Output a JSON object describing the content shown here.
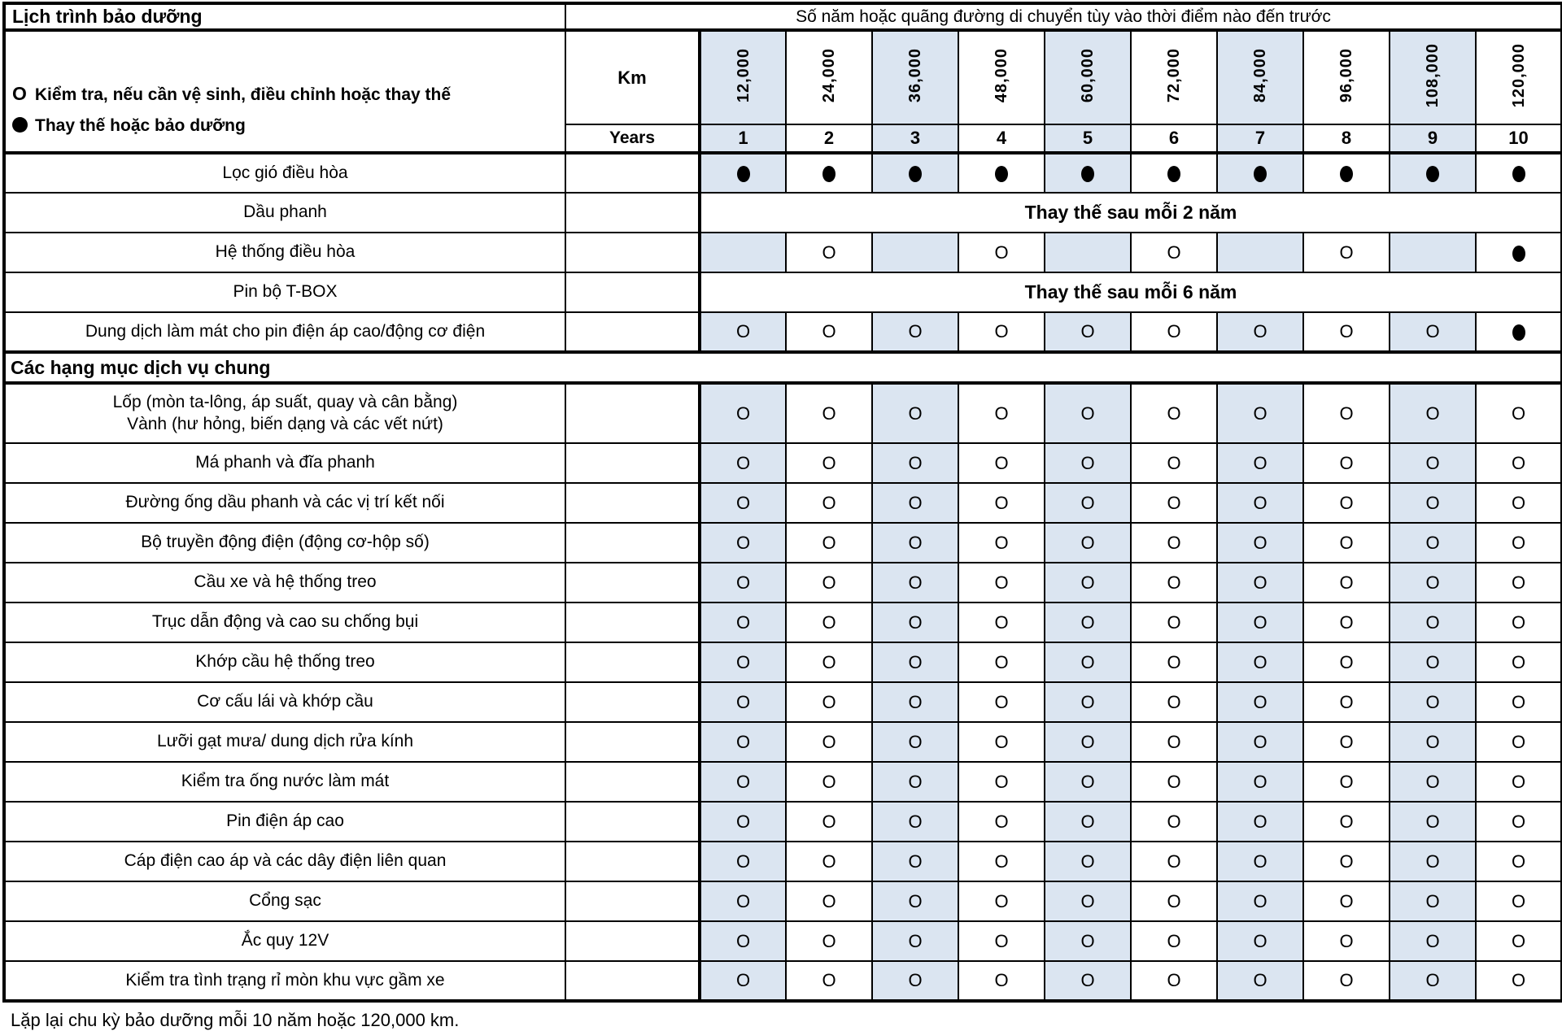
{
  "colors": {
    "alt_column_bg": "#dbe5f1",
    "border": "#000000",
    "background": "#ffffff"
  },
  "header": {
    "title": "Lịch trình bảo dưỡng",
    "subtitle": "Số năm hoặc quãng đường di chuyển tùy vào thời điểm nào đến trước",
    "km_label": "Km",
    "years_label": "Years",
    "km_values": [
      "12,000",
      "24,000",
      "36,000",
      "48,000",
      "60,000",
      "72,000",
      "84,000",
      "96,000",
      "108,000",
      "120,000"
    ],
    "year_values": [
      "1",
      "2",
      "3",
      "4",
      "5",
      "6",
      "7",
      "8",
      "9",
      "10"
    ]
  },
  "legend": {
    "o_symbol": "O",
    "o_text": "Kiểm tra, nếu cần vệ sinh, điều chỉnh hoặc thay thế",
    "dot_text": "Thay thế hoặc bảo dưỡng"
  },
  "sections": [
    {
      "header": null,
      "rows": [
        {
          "label": "Lọc gió điều hòa",
          "marks": [
            "dot",
            "dot",
            "dot",
            "dot",
            "dot",
            "dot",
            "dot",
            "dot",
            "dot",
            "dot"
          ]
        },
        {
          "label": "Dầu phanh",
          "merged_text": "Thay thế sau mỗi 2 năm"
        },
        {
          "label": "Hệ thống điều hòa",
          "marks": [
            "",
            "O",
            "",
            "O",
            "",
            "O",
            "",
            "O",
            "",
            "dot"
          ]
        },
        {
          "label": "Pin bộ T-BOX",
          "merged_text": "Thay thế sau mỗi 6 năm"
        },
        {
          "label": "Dung dịch làm mát cho pin điện áp cao/động cơ điện",
          "marks": [
            "O",
            "O",
            "O",
            "O",
            "O",
            "O",
            "O",
            "O",
            "O",
            "dot"
          ]
        }
      ]
    },
    {
      "header": "Các hạng mục dịch vụ chung",
      "rows": [
        {
          "label": "Lốp (mòn ta-lông, áp suất, quay và cân bằng)\nVành (hư hỏng, biến dạng và các vết nứt)",
          "tall": true,
          "marks": [
            "O",
            "O",
            "O",
            "O",
            "O",
            "O",
            "O",
            "O",
            "O",
            "O"
          ]
        },
        {
          "label": "Má phanh và đĩa phanh",
          "marks": [
            "O",
            "O",
            "O",
            "O",
            "O",
            "O",
            "O",
            "O",
            "O",
            "O"
          ]
        },
        {
          "label": "Đường ống dầu phanh và các vị trí kết nối",
          "marks": [
            "O",
            "O",
            "O",
            "O",
            "O",
            "O",
            "O",
            "O",
            "O",
            "O"
          ]
        },
        {
          "label": "Bộ truyền động điện (động cơ-hộp số)",
          "marks": [
            "O",
            "O",
            "O",
            "O",
            "O",
            "O",
            "O",
            "O",
            "O",
            "O"
          ]
        },
        {
          "label": "Cầu xe và hệ thống treo",
          "marks": [
            "O",
            "O",
            "O",
            "O",
            "O",
            "O",
            "O",
            "O",
            "O",
            "O"
          ]
        },
        {
          "label": "Trục dẫn động và cao su chống bụi",
          "marks": [
            "O",
            "O",
            "O",
            "O",
            "O",
            "O",
            "O",
            "O",
            "O",
            "O"
          ]
        },
        {
          "label": "Khớp cầu hệ thống treo",
          "marks": [
            "O",
            "O",
            "O",
            "O",
            "O",
            "O",
            "O",
            "O",
            "O",
            "O"
          ]
        },
        {
          "label": "Cơ cấu lái và khớp cầu",
          "marks": [
            "O",
            "O",
            "O",
            "O",
            "O",
            "O",
            "O",
            "O",
            "O",
            "O"
          ]
        },
        {
          "label": "Lưỡi gạt mưa/ dung dịch rửa kính",
          "marks": [
            "O",
            "O",
            "O",
            "O",
            "O",
            "O",
            "O",
            "O",
            "O",
            "O"
          ]
        },
        {
          "label": "Kiểm tra ống nước làm mát",
          "marks": [
            "O",
            "O",
            "O",
            "O",
            "O",
            "O",
            "O",
            "O",
            "O",
            "O"
          ]
        },
        {
          "label": "Pin điện áp cao",
          "marks": [
            "O",
            "O",
            "O",
            "O",
            "O",
            "O",
            "O",
            "O",
            "O",
            "O"
          ]
        },
        {
          "label": "Cáp điện cao áp và các dây điện liên quan",
          "marks": [
            "O",
            "O",
            "O",
            "O",
            "O",
            "O",
            "O",
            "O",
            "O",
            "O"
          ]
        },
        {
          "label": "Cổng sạc",
          "marks": [
            "O",
            "O",
            "O",
            "O",
            "O",
            "O",
            "O",
            "O",
            "O",
            "O"
          ]
        },
        {
          "label": "Ắc quy 12V",
          "marks": [
            "O",
            "O",
            "O",
            "O",
            "O",
            "O",
            "O",
            "O",
            "O",
            "O"
          ]
        },
        {
          "label": "Kiểm tra tình trạng rỉ mòn khu vực gầm xe",
          "marks": [
            "O",
            "O",
            "O",
            "O",
            "O",
            "O",
            "O",
            "O",
            "O",
            "O"
          ]
        }
      ]
    }
  ],
  "footer": "Lặp lại chu kỳ bảo dưỡng mỗi 10 năm hoặc 120,000 km."
}
